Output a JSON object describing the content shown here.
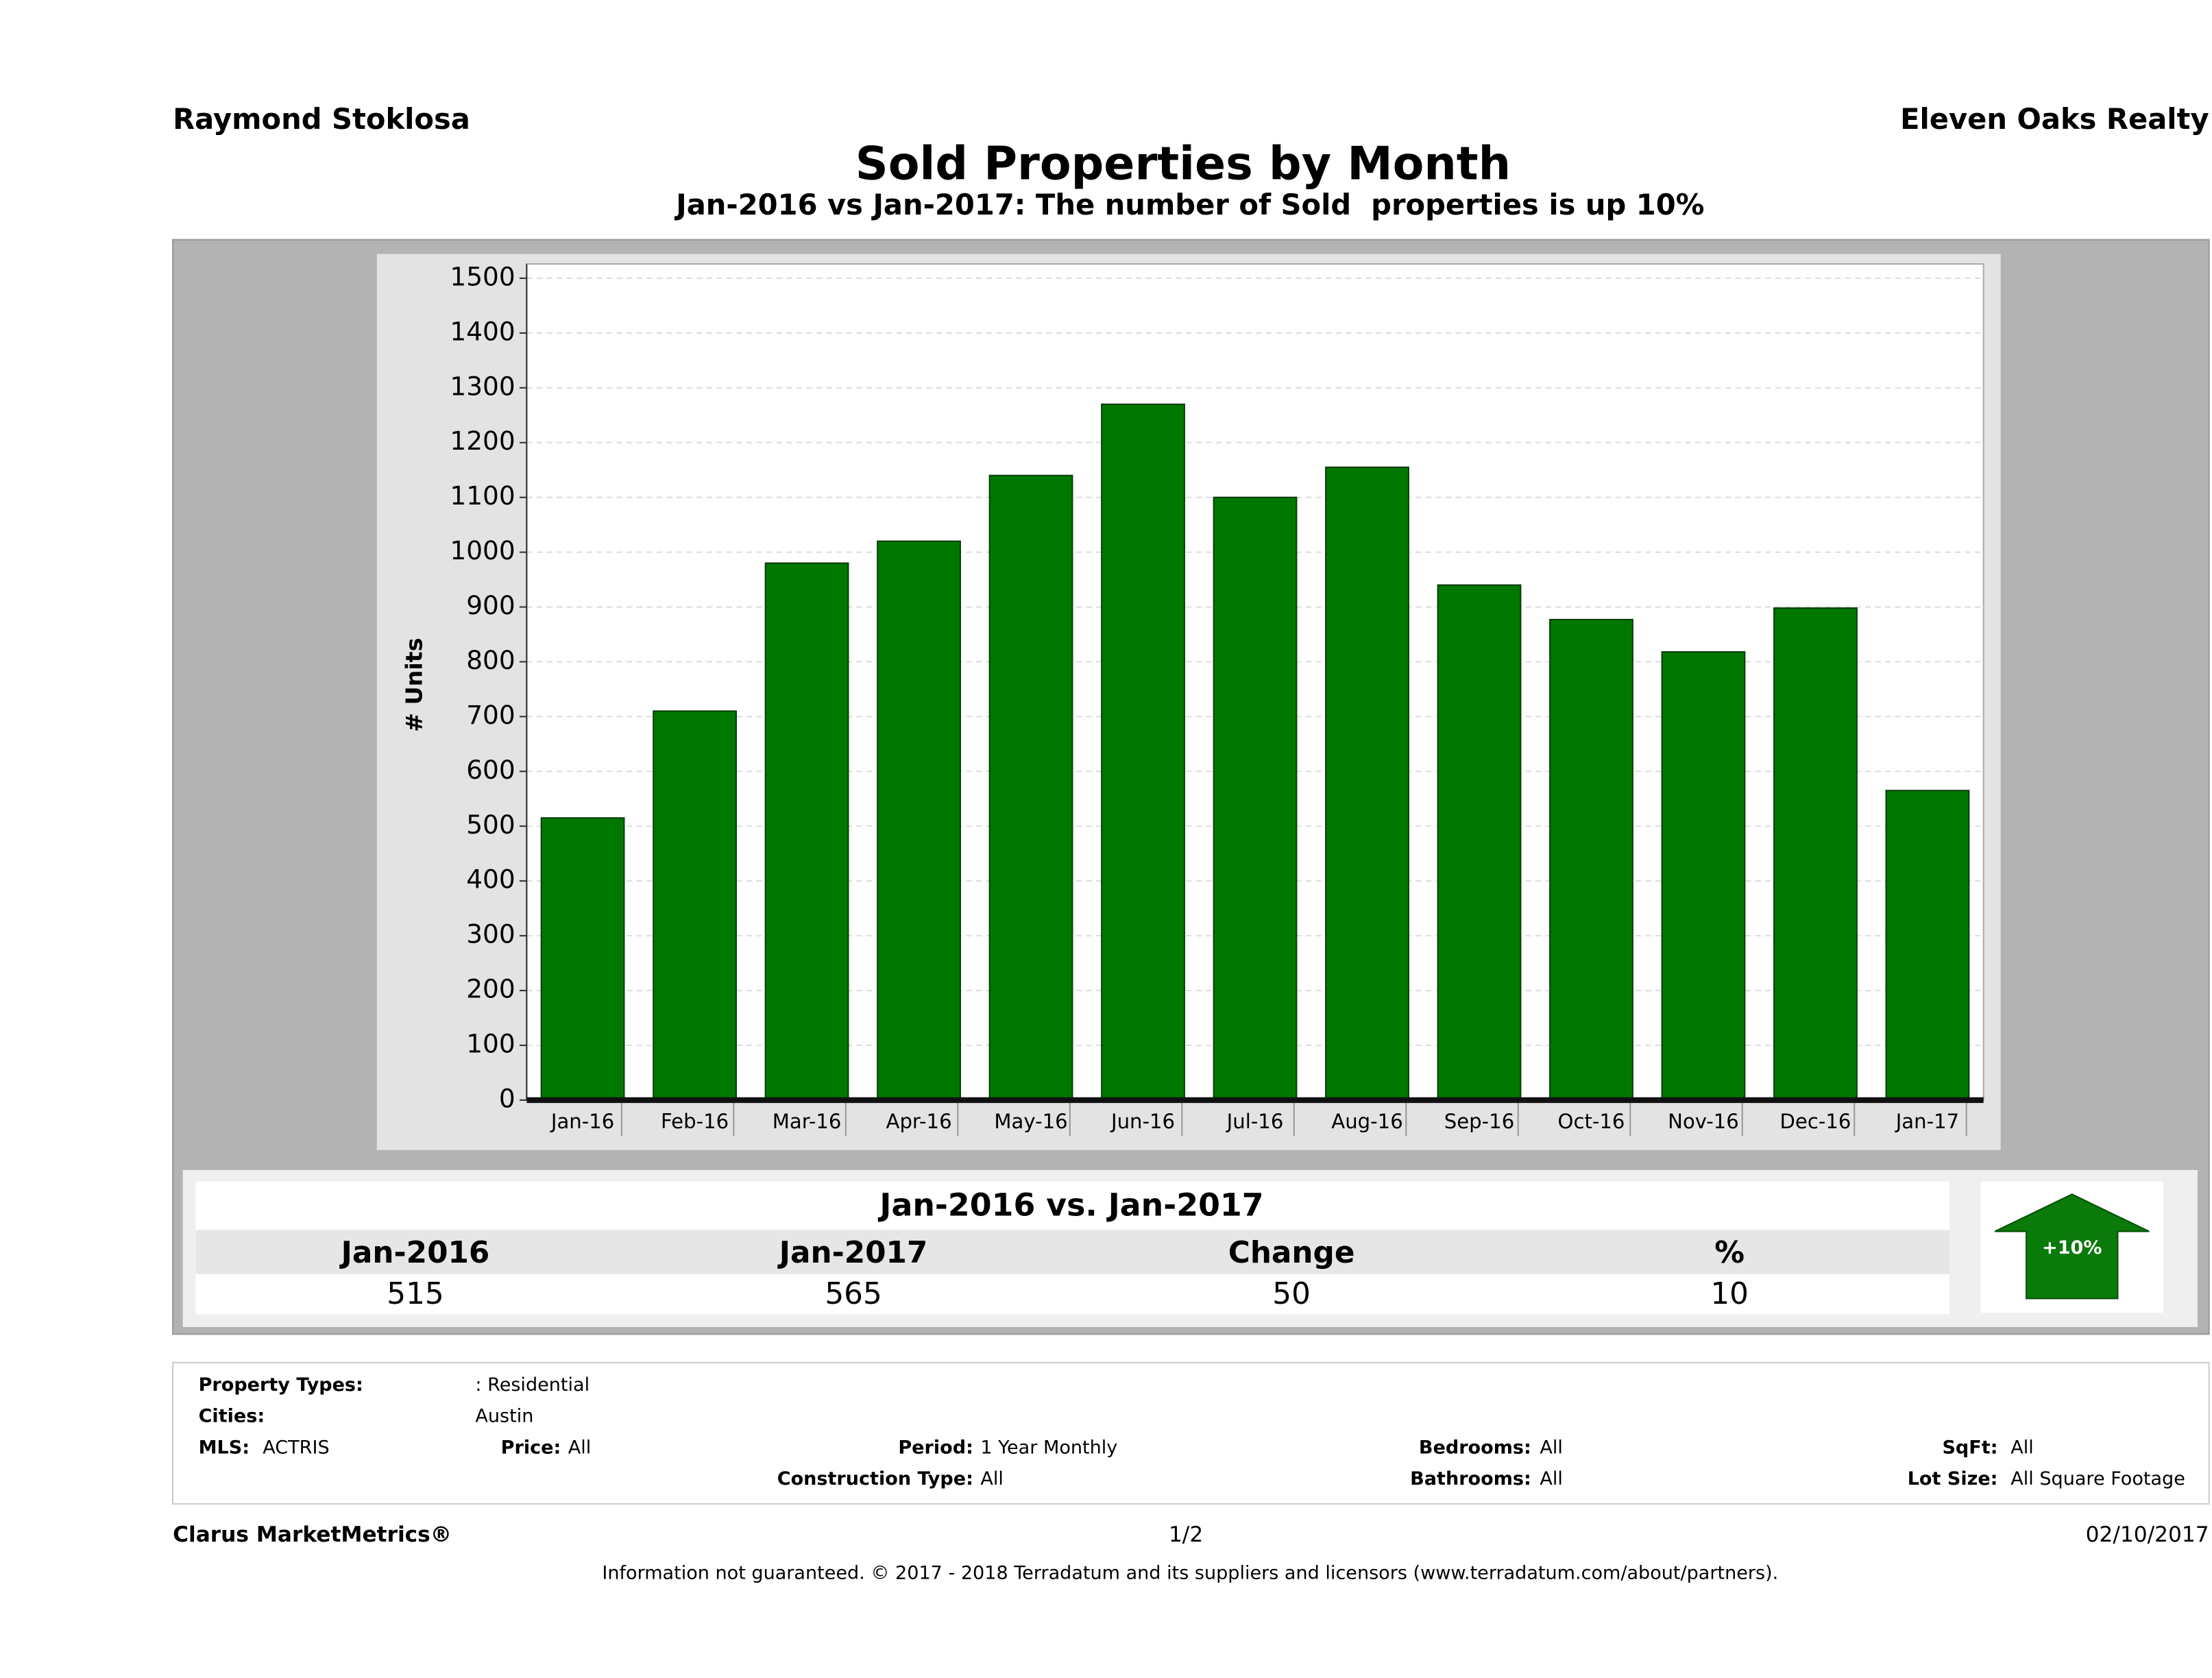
{
  "header": {
    "agent": "Raymond Stoklosa",
    "company": "Eleven Oaks Realty"
  },
  "chart_data": {
    "type": "bar",
    "title": "Sold Properties by Month",
    "subtitle": "Jan-2016 vs Jan-2017: The number of Sold  properties is up 10%",
    "y_label": "# Units",
    "categories": [
      "Jan-16",
      "Feb-16",
      "Mar-16",
      "Apr-16",
      "May-16",
      "Jun-16",
      "Jul-16",
      "Aug-16",
      "Sep-16",
      "Oct-16",
      "Nov-16",
      "Dec-16",
      "Jan-17"
    ],
    "values": [
      515,
      710,
      980,
      1020,
      1140,
      1270,
      1100,
      1155,
      940,
      877,
      818,
      898,
      565
    ],
    "color": "#007800",
    "ylim": [
      0,
      1500
    ],
    "yticks": [
      0,
      100,
      200,
      300,
      400,
      500,
      600,
      700,
      800,
      900,
      1000,
      1100,
      1200,
      1300,
      1400,
      1500
    ],
    "grid": true
  },
  "summary": {
    "title": "Jan-2016 vs. Jan-2017",
    "headers": [
      "Jan-2016",
      "Jan-2017",
      "Change",
      "%"
    ],
    "values": [
      "515",
      "565",
      "50",
      "10"
    ],
    "badge": "+10%"
  },
  "details": [
    {
      "label": "Property Types:",
      "value": ": Residential"
    },
    {
      "label": "Cities:",
      "value": "Austin"
    },
    {
      "label": "MLS:",
      "value": "ACTRIS"
    },
    {
      "label": "Price:",
      "value": "All"
    },
    {
      "label": "Period:",
      "value": "1 Year Monthly"
    },
    {
      "label": "Bedrooms:",
      "value": "All"
    },
    {
      "label": "SqFt:",
      "value": "All"
    },
    {
      "label": "Construction Type:",
      "value": "All"
    },
    {
      "label": "Bathrooms:",
      "value": "All"
    },
    {
      "label": "Lot Size:",
      "value": "All Square Footage"
    }
  ],
  "footer": {
    "brand": "Clarus MarketMetrics®",
    "page": "1/2",
    "date": "02/10/2017",
    "disclaimer": "Information not guaranteed. © 2017 - 2018 Terradatum and its suppliers and licensors (www.terradatum.com/about/partners)."
  }
}
